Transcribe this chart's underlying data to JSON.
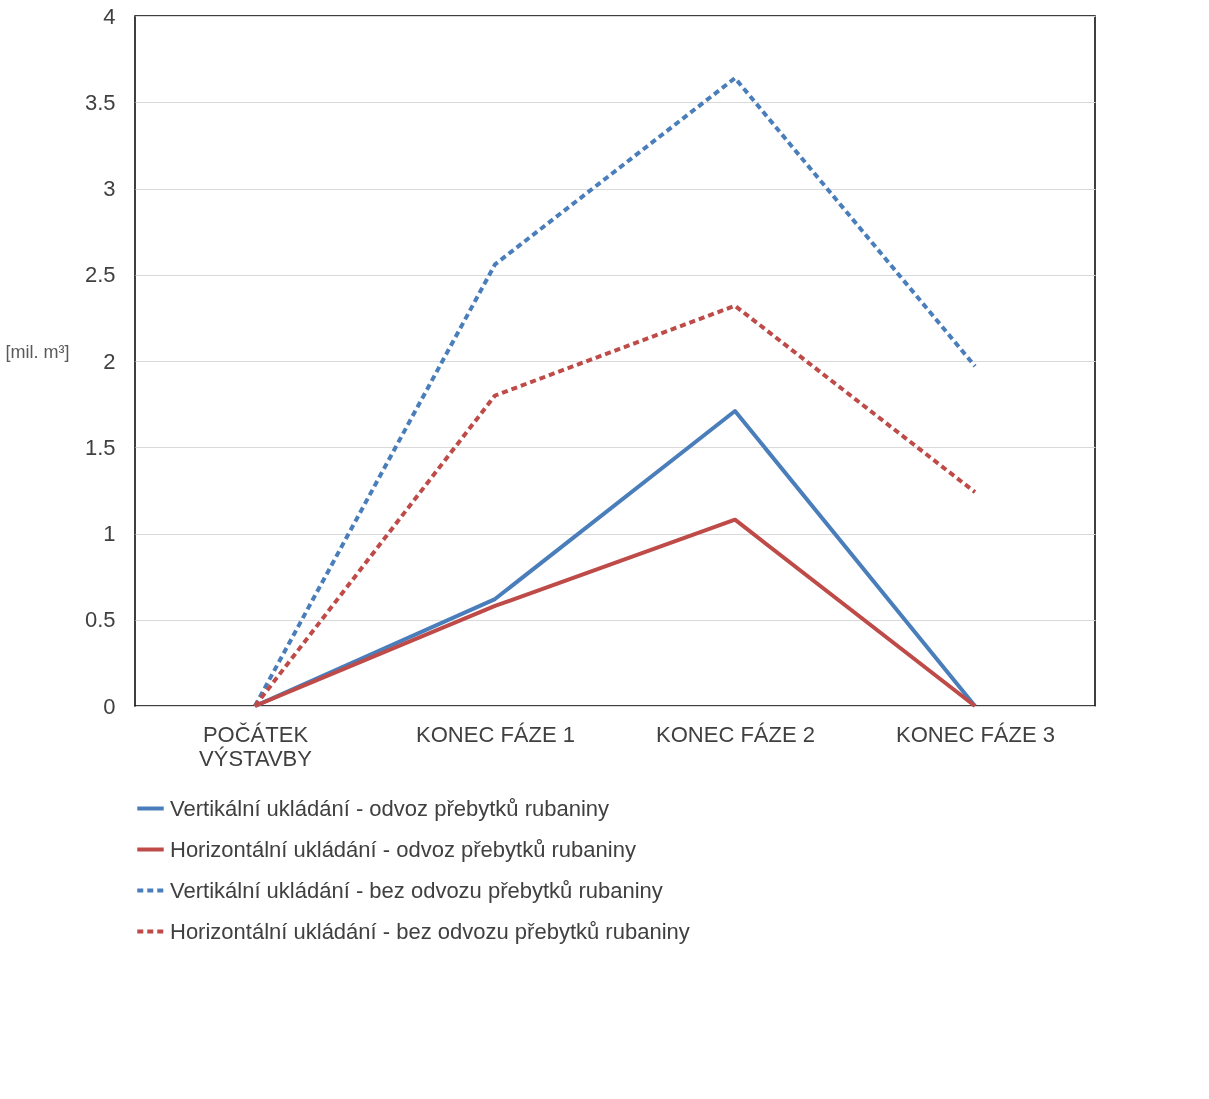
{
  "chart_data": {
    "type": "line",
    "ylabel": "[mil. m³]",
    "categories": [
      "POČÁTEK VÝSTAVBY",
      "KONEC FÁZE 1",
      "KONEC FÁZE 2",
      "KONEC FÁZE 3"
    ],
    "ylim": [
      0,
      4
    ],
    "yticks": [
      0,
      0.5,
      1,
      1.5,
      2,
      2.5,
      3,
      3.5,
      4
    ],
    "grid": "y",
    "legend": "bottom",
    "marker": "none",
    "series": [
      {
        "name": "Vertikální ukládání - odvoz přebytků rubaniny",
        "color": "#4a7ebb",
        "line_style": "solid",
        "values": [
          0,
          0.62,
          1.71,
          0
        ]
      },
      {
        "name": "Horizontální ukládání - odvoz přebytků rubaniny",
        "color": "#be4b48",
        "line_style": "solid",
        "values": [
          0,
          0.58,
          1.08,
          0
        ]
      },
      {
        "name": "Vertikální ukládání - bez odvozu přebytků rubaniny",
        "color": "#4a7ebb",
        "line_style": "dashed",
        "values": [
          0,
          2.56,
          3.64,
          1.97
        ]
      },
      {
        "name": "Horizontální ukládání - bez odvozu přebytků rubaniny",
        "color": "#be4b48",
        "line_style": "dashed",
        "values": [
          0,
          1.8,
          2.32,
          1.24
        ]
      }
    ]
  }
}
